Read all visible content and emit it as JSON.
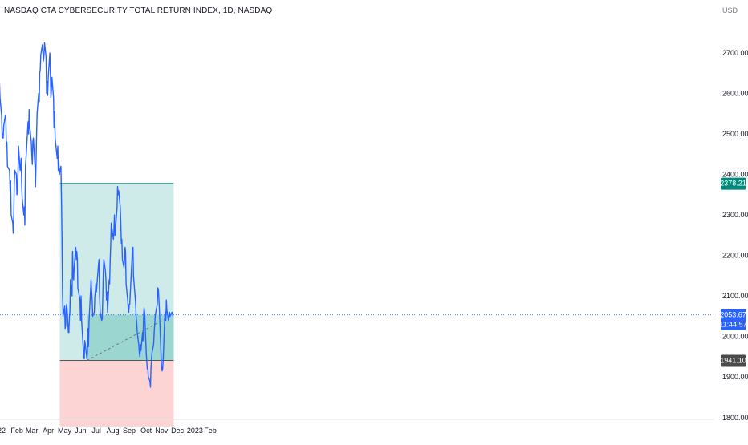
{
  "header": {
    "title": "NASDAQ CTA CYBERSECURITY TOTAL RETURN INDEX, 1D, NASDAQ",
    "currency": "USD"
  },
  "price_labels": {
    "target": "2378.21",
    "current": "2053.67",
    "countdown": "11:44:57",
    "stop": "1941.10"
  },
  "colors": {
    "line": "#2962ff",
    "profit_zone": "#26a69a",
    "loss_zone": "#ef5350",
    "target_label": "#00897b",
    "current_label": "#2962ff",
    "stop_label": "#4a4a4a"
  },
  "chart_data": {
    "type": "line",
    "title": "NASDAQ CTA CYBERSECURITY TOTAL RETURN INDEX, 1D, NASDAQ",
    "ylim": [
      1780,
      2820
    ],
    "y_ticks": [
      "2700.00",
      "2600.00",
      "2500.00",
      "2400.00",
      "2300.00",
      "2200.00",
      "2100.00",
      "2000.00",
      "1900.00",
      "1800.00"
    ],
    "x_ticks": [
      {
        "label": "22",
        "date": "2022-01-03"
      },
      {
        "label": "Feb",
        "date": "2022-02-01"
      },
      {
        "label": "Mar",
        "date": "2022-03-01"
      },
      {
        "label": "Apr",
        "date": "2022-04-01"
      },
      {
        "label": "May",
        "date": "2022-05-02"
      },
      {
        "label": "Jun",
        "date": "2022-06-01"
      },
      {
        "label": "Jul",
        "date": "2022-07-01"
      },
      {
        "label": "Aug",
        "date": "2022-08-01"
      },
      {
        "label": "Sep",
        "date": "2022-09-01"
      },
      {
        "label": "Oct",
        "date": "2022-10-03"
      },
      {
        "label": "Nov",
        "date": "2022-11-01"
      },
      {
        "label": "Dec",
        "date": "2022-12-01"
      },
      {
        "label": "2023",
        "date": "2023-01-03"
      },
      {
        "label": "Feb",
        "date": "2023-02-01"
      }
    ],
    "series": [
      {
        "name": "",
        "values": [
          [
            "2021-12-30",
            2625
          ],
          [
            "2021-12-31",
            2590
          ],
          [
            "2022-01-03",
            2545
          ],
          [
            "2022-01-04",
            2490
          ],
          [
            "2022-01-05",
            2500
          ],
          [
            "2022-01-06",
            2490
          ],
          [
            "2022-01-07",
            2520
          ],
          [
            "2022-01-10",
            2545
          ],
          [
            "2022-01-11",
            2540
          ],
          [
            "2022-01-12",
            2470
          ],
          [
            "2022-01-13",
            2480
          ],
          [
            "2022-01-14",
            2420
          ],
          [
            "2022-01-18",
            2410
          ],
          [
            "2022-01-19",
            2360
          ],
          [
            "2022-01-20",
            2385
          ],
          [
            "2022-01-21",
            2300
          ],
          [
            "2022-01-24",
            2280
          ],
          [
            "2022-01-25",
            2255
          ],
          [
            "2022-01-26",
            2300
          ],
          [
            "2022-01-27",
            2380
          ],
          [
            "2022-01-28",
            2410
          ],
          [
            "2022-01-31",
            2400
          ],
          [
            "2022-02-01",
            2350
          ],
          [
            "2022-02-02",
            2360
          ],
          [
            "2022-02-03",
            2410
          ],
          [
            "2022-02-04",
            2470
          ],
          [
            "2022-02-07",
            2410
          ],
          [
            "2022-02-08",
            2420
          ],
          [
            "2022-02-09",
            2440
          ],
          [
            "2022-02-10",
            2370
          ],
          [
            "2022-02-11",
            2340
          ],
          [
            "2022-02-14",
            2300
          ],
          [
            "2022-02-15",
            2320
          ],
          [
            "2022-02-16",
            2275
          ],
          [
            "2022-02-17",
            2420
          ],
          [
            "2022-02-18",
            2440
          ],
          [
            "2022-02-22",
            2530
          ],
          [
            "2022-02-23",
            2500
          ],
          [
            "2022-02-24",
            2560
          ],
          [
            "2022-02-25",
            2520
          ],
          [
            "2022-02-28",
            2480
          ],
          [
            "2022-03-01",
            2450
          ],
          [
            "2022-03-02",
            2425
          ],
          [
            "2022-03-03",
            2480
          ],
          [
            "2022-03-04",
            2490
          ],
          [
            "2022-03-07",
            2420
          ],
          [
            "2022-03-08",
            2370
          ],
          [
            "2022-03-09",
            2430
          ],
          [
            "2022-03-10",
            2500
          ],
          [
            "2022-03-11",
            2550
          ],
          [
            "2022-03-14",
            2600
          ],
          [
            "2022-03-15",
            2580
          ],
          [
            "2022-03-16",
            2650
          ],
          [
            "2022-03-17",
            2660
          ],
          [
            "2022-03-18",
            2695
          ],
          [
            "2022-03-21",
            2720
          ],
          [
            "2022-03-22",
            2700
          ],
          [
            "2022-03-23",
            2680
          ],
          [
            "2022-03-24",
            2695
          ],
          [
            "2022-03-25",
            2725
          ],
          [
            "2022-03-28",
            2690
          ],
          [
            "2022-03-29",
            2600
          ],
          [
            "2022-03-30",
            2630
          ],
          [
            "2022-03-31",
            2595
          ],
          [
            "2022-04-01",
            2640
          ],
          [
            "2022-04-04",
            2700
          ],
          [
            "2022-04-05",
            2660
          ],
          [
            "2022-04-06",
            2590
          ],
          [
            "2022-04-07",
            2605
          ],
          [
            "2022-04-08",
            2640
          ],
          [
            "2022-04-11",
            2590
          ],
          [
            "2022-04-12",
            2515
          ],
          [
            "2022-04-13",
            2555
          ],
          [
            "2022-04-14",
            2490
          ],
          [
            "2022-04-18",
            2440
          ],
          [
            "2022-04-19",
            2470
          ],
          [
            "2022-04-20",
            2410
          ],
          [
            "2022-04-21",
            2435
          ],
          [
            "2022-04-22",
            2400
          ],
          [
            "2022-04-25",
            2420
          ],
          [
            "2022-04-26",
            2340
          ],
          [
            "2022-04-27",
            2250
          ],
          [
            "2022-04-28",
            2110
          ],
          [
            "2022-04-29",
            2050
          ],
          [
            "2022-05-02",
            2075
          ],
          [
            "2022-05-03",
            2020
          ],
          [
            "2022-05-04",
            2030
          ],
          [
            "2022-05-05",
            2070
          ],
          [
            "2022-05-06",
            2080
          ],
          [
            "2022-05-09",
            2010
          ],
          [
            "2022-05-10",
            2010
          ],
          [
            "2022-05-11",
            2050
          ],
          [
            "2022-05-12",
            2060
          ],
          [
            "2022-05-13",
            2140
          ],
          [
            "2022-05-16",
            2100
          ],
          [
            "2022-05-17",
            2210
          ],
          [
            "2022-05-18",
            2150
          ],
          [
            "2022-05-19",
            2140
          ],
          [
            "2022-05-20",
            2170
          ],
          [
            "2022-05-23",
            2220
          ],
          [
            "2022-05-24",
            2190
          ],
          [
            "2022-05-25",
            2210
          ],
          [
            "2022-05-26",
            2190
          ],
          [
            "2022-05-27",
            2120
          ],
          [
            "2022-05-31",
            2090
          ],
          [
            "2022-06-01",
            2040
          ],
          [
            "2022-06-02",
            2100
          ],
          [
            "2022-06-03",
            2040
          ],
          [
            "2022-06-06",
            1975
          ],
          [
            "2022-06-07",
            1950
          ],
          [
            "2022-06-08",
            1945
          ],
          [
            "2022-06-09",
            1990
          ],
          [
            "2022-06-10",
            1980
          ],
          [
            "2022-06-13",
            1945
          ],
          [
            "2022-06-14",
            1960
          ],
          [
            "2022-06-15",
            2020
          ],
          [
            "2022-06-16",
            1975
          ],
          [
            "2022-06-17",
            2035
          ],
          [
            "2022-06-21",
            2140
          ],
          [
            "2022-06-22",
            2110
          ],
          [
            "2022-06-23",
            2090
          ],
          [
            "2022-06-24",
            2050
          ],
          [
            "2022-06-27",
            2060
          ],
          [
            "2022-06-28",
            2100
          ],
          [
            "2022-06-29",
            2110
          ],
          [
            "2022-06-30",
            2130
          ],
          [
            "2022-07-01",
            2110
          ],
          [
            "2022-07-05",
            2180
          ],
          [
            "2022-07-06",
            2190
          ],
          [
            "2022-07-07",
            2100
          ],
          [
            "2022-07-08",
            2060
          ],
          [
            "2022-07-11",
            2040
          ],
          [
            "2022-07-12",
            2045
          ],
          [
            "2022-07-13",
            2100
          ],
          [
            "2022-07-14",
            2160
          ],
          [
            "2022-07-15",
            2190
          ],
          [
            "2022-07-18",
            2160
          ],
          [
            "2022-07-19",
            2140
          ],
          [
            "2022-07-20",
            2090
          ],
          [
            "2022-07-21",
            2110
          ],
          [
            "2022-07-22",
            2060
          ],
          [
            "2022-07-25",
            2140
          ],
          [
            "2022-07-26",
            2130
          ],
          [
            "2022-07-27",
            2190
          ],
          [
            "2022-07-28",
            2230
          ],
          [
            "2022-07-29",
            2280
          ],
          [
            "2022-08-01",
            2250
          ],
          [
            "2022-08-02",
            2240
          ],
          [
            "2022-08-03",
            2260
          ],
          [
            "2022-08-04",
            2300
          ],
          [
            "2022-08-05",
            2250
          ],
          [
            "2022-08-08",
            2300
          ],
          [
            "2022-08-09",
            2320
          ],
          [
            "2022-08-10",
            2370
          ],
          [
            "2022-08-11",
            2350
          ],
          [
            "2022-08-12",
            2360
          ],
          [
            "2022-08-15",
            2320
          ],
          [
            "2022-08-16",
            2280
          ],
          [
            "2022-08-17",
            2230
          ],
          [
            "2022-08-18",
            2240
          ],
          [
            "2022-08-19",
            2190
          ],
          [
            "2022-08-22",
            2170
          ],
          [
            "2022-08-23",
            2190
          ],
          [
            "2022-08-24",
            2220
          ],
          [
            "2022-08-25",
            2210
          ],
          [
            "2022-08-26",
            2130
          ],
          [
            "2022-08-29",
            2090
          ],
          [
            "2022-08-30",
            2070
          ],
          [
            "2022-08-31",
            2060
          ],
          [
            "2022-09-01",
            2080
          ],
          [
            "2022-09-02",
            2080
          ],
          [
            "2022-09-06",
            2190
          ],
          [
            "2022-09-07",
            2220
          ],
          [
            "2022-09-08",
            2220
          ],
          [
            "2022-09-09",
            2150
          ],
          [
            "2022-09-12",
            2100
          ],
          [
            "2022-09-13",
            2080
          ],
          [
            "2022-09-14",
            2050
          ],
          [
            "2022-09-15",
            2035
          ],
          [
            "2022-09-16",
            2010
          ],
          [
            "2022-09-19",
            1980
          ],
          [
            "2022-09-20",
            1960
          ],
          [
            "2022-09-21",
            1950
          ],
          [
            "2022-09-22",
            1980
          ],
          [
            "2022-09-23",
            1965
          ],
          [
            "2022-09-26",
            2010
          ],
          [
            "2022-09-27",
            1990
          ],
          [
            "2022-09-28",
            2050
          ],
          [
            "2022-09-29",
            2070
          ],
          [
            "2022-09-30",
            2060
          ],
          [
            "2022-10-03",
            1960
          ],
          [
            "2022-10-04",
            1940
          ],
          [
            "2022-10-05",
            1920
          ],
          [
            "2022-10-06",
            1920
          ],
          [
            "2022-10-07",
            1900
          ],
          [
            "2022-10-10",
            1890
          ],
          [
            "2022-10-11",
            1875
          ],
          [
            "2022-10-12",
            1920
          ],
          [
            "2022-10-13",
            1945
          ],
          [
            "2022-10-14",
            1960
          ],
          [
            "2022-10-17",
            1980
          ],
          [
            "2022-10-18",
            2010
          ],
          [
            "2022-10-19",
            2030
          ],
          [
            "2022-10-20",
            2050
          ],
          [
            "2022-10-21",
            2060
          ],
          [
            "2022-10-24",
            2080
          ],
          [
            "2022-10-25",
            2120
          ],
          [
            "2022-10-26",
            2115
          ],
          [
            "2022-10-27",
            2090
          ],
          [
            "2022-10-28",
            2060
          ],
          [
            "2022-10-31",
            1950
          ],
          [
            "2022-11-01",
            1925
          ],
          [
            "2022-11-02",
            1915
          ],
          [
            "2022-11-03",
            1920
          ],
          [
            "2022-11-04",
            1940
          ],
          [
            "2022-11-07",
            2050
          ],
          [
            "2022-11-08",
            2060
          ],
          [
            "2022-11-09",
            2040
          ],
          [
            "2022-11-10",
            2090
          ],
          [
            "2022-11-11",
            2065
          ],
          [
            "2022-11-14",
            2040
          ],
          [
            "2022-11-15",
            2050
          ],
          [
            "2022-11-16",
            2060
          ],
          [
            "2022-11-17",
            2050
          ],
          [
            "2022-11-18",
            2055
          ],
          [
            "2022-11-21",
            2060
          ],
          [
            "2022-11-22",
            2053.67
          ]
        ]
      }
    ],
    "annotations": {
      "position_entry": {
        "date": "2022-06-13",
        "value": 2053.67
      },
      "position_end": "2022-11-24",
      "target": 2378.21,
      "stop": 1941.1,
      "trend_line": {
        "from": [
          "2022-06-13",
          1941.1
        ],
        "to": [
          "2022-11-23",
          2053.67
        ]
      }
    }
  }
}
